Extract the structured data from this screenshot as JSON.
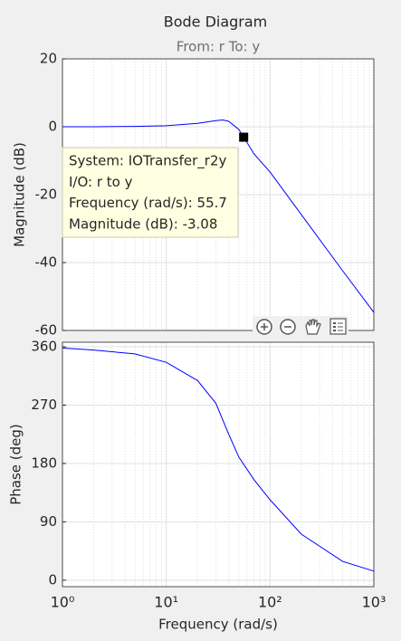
{
  "chart_data": [
    {
      "type": "line",
      "title": "Bode Diagram",
      "subtitle": "From: r  To: y",
      "ylabel": "Magnitude (dB)",
      "xscale": "log",
      "xlim": [
        1,
        1000
      ],
      "x": [
        1,
        2,
        5,
        10,
        20,
        30,
        35,
        40,
        50,
        55.7,
        70,
        100,
        200,
        500,
        1000
      ],
      "values": [
        0,
        0,
        0.1,
        0.3,
        1.0,
        1.8,
        2.0,
        1.6,
        -0.8,
        -3.08,
        -8,
        -13.3,
        -25.9,
        -42.4,
        -54.7
      ],
      "color": "#0000ff",
      "ylim": [
        -60,
        20
      ],
      "yticks": [
        -60,
        -40,
        -20,
        0,
        20
      ],
      "grid": true,
      "datatip": {
        "x": 55.7,
        "y": -3.08,
        "lines": [
          "System: IOTransfer_r2y",
          "I/O: r to y",
          "Frequency (rad/s): 55.7",
          "Magnitude (dB): -3.08"
        ]
      }
    },
    {
      "type": "line",
      "ylabel": "Phase (deg)",
      "xlabel": "Frequency  (rad/s)",
      "xscale": "log",
      "xlim": [
        1,
        1000
      ],
      "xticks": [
        {
          "value": 1,
          "label": "10⁰"
        },
        {
          "value": 10,
          "label": "10¹"
        },
        {
          "value": 100,
          "label": "10²"
        },
        {
          "value": 1000,
          "label": "10³"
        }
      ],
      "x": [
        1,
        2,
        5,
        10,
        20,
        30,
        40,
        50,
        70,
        100,
        200,
        500,
        1000
      ],
      "values": [
        358,
        355,
        349,
        336,
        308,
        273,
        225,
        190,
        155,
        124,
        71,
        29,
        14
      ],
      "color": "#0000ff",
      "ylim": [
        -10,
        367
      ],
      "yticks": [
        0,
        90,
        180,
        270,
        360
      ],
      "grid": true
    }
  ]
}
